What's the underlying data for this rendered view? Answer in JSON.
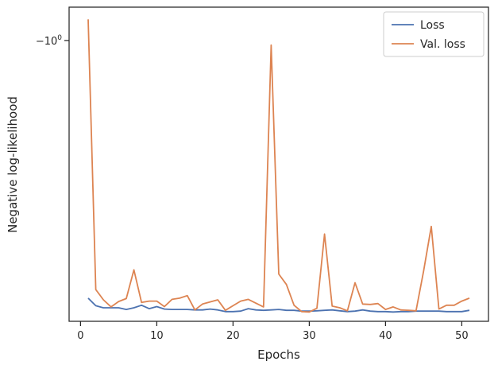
{
  "chart_data": {
    "type": "line",
    "title": "",
    "xlabel": "Epochs",
    "ylabel": "Negative log-likelihood",
    "xlim": [
      -1.5,
      53.5
    ],
    "ylim": [
      -1.32,
      -0.962
    ],
    "y_scale": "symlog (inverted)",
    "xticks": [
      {
        "value": 0,
        "label": "0"
      },
      {
        "value": 10,
        "label": "10"
      },
      {
        "value": 20,
        "label": "20"
      },
      {
        "value": 30,
        "label": "30"
      },
      {
        "value": 40,
        "label": "40"
      },
      {
        "value": 50,
        "label": "50"
      }
    ],
    "yticks": [
      {
        "value": -1.0,
        "label": "−10",
        "sup": "0"
      }
    ],
    "grid": false,
    "legend": {
      "position": "upper right"
    },
    "x": [
      1,
      2,
      3,
      4,
      5,
      6,
      7,
      8,
      9,
      10,
      11,
      12,
      13,
      14,
      15,
      16,
      17,
      18,
      19,
      20,
      21,
      22,
      23,
      24,
      25,
      26,
      27,
      28,
      29,
      30,
      31,
      32,
      33,
      34,
      35,
      36,
      37,
      38,
      39,
      40,
      41,
      42,
      43,
      44,
      45,
      46,
      47,
      48,
      49,
      50,
      51
    ],
    "series": [
      {
        "name": "Loss",
        "color": "#4c72b0",
        "values": [
          -1.2936,
          -1.3022,
          -1.3046,
          -1.3046,
          -1.3046,
          -1.3065,
          -1.3046,
          -1.3017,
          -1.3056,
          -1.3032,
          -1.306,
          -1.3065,
          -1.3065,
          -1.3065,
          -1.307,
          -1.307,
          -1.306,
          -1.307,
          -1.3089,
          -1.3089,
          -1.3084,
          -1.3056,
          -1.307,
          -1.3075,
          -1.307,
          -1.3065,
          -1.3075,
          -1.3075,
          -1.3084,
          -1.3084,
          -1.308,
          -1.3075,
          -1.307,
          -1.308,
          -1.3089,
          -1.3084,
          -1.307,
          -1.3084,
          -1.3089,
          -1.3089,
          -1.3094,
          -1.3089,
          -1.3089,
          -1.3084,
          -1.3084,
          -1.3084,
          -1.3084,
          -1.3089,
          -1.3089,
          -1.3089,
          -1.3075
        ]
      },
      {
        "name": "Val. loss",
        "color": "#dd8452",
        "values": [
          -0.9759,
          -1.2838,
          -1.2955,
          -1.3036,
          -1.2974,
          -1.2941,
          -1.2614,
          -1.2985,
          -1.297,
          -1.297,
          -1.3032,
          -1.295,
          -1.2936,
          -1.2907,
          -1.307,
          -1.3003,
          -1.2979,
          -1.2955,
          -1.3075,
          -1.3022,
          -1.297,
          -1.295,
          -1.2993,
          -1.3036,
          -1.0052,
          -1.2662,
          -1.278,
          -1.3017,
          -1.3089,
          -1.3094,
          -1.3051,
          -1.2206,
          -1.3027,
          -1.3046,
          -1.308,
          -1.276,
          -1.3003,
          -1.3008,
          -1.2998,
          -1.3065,
          -1.3036,
          -1.307,
          -1.3075,
          -1.308,
          -1.2624,
          -1.2119,
          -1.306,
          -1.3017,
          -1.3017,
          -1.297,
          -1.2936
        ]
      }
    ]
  }
}
